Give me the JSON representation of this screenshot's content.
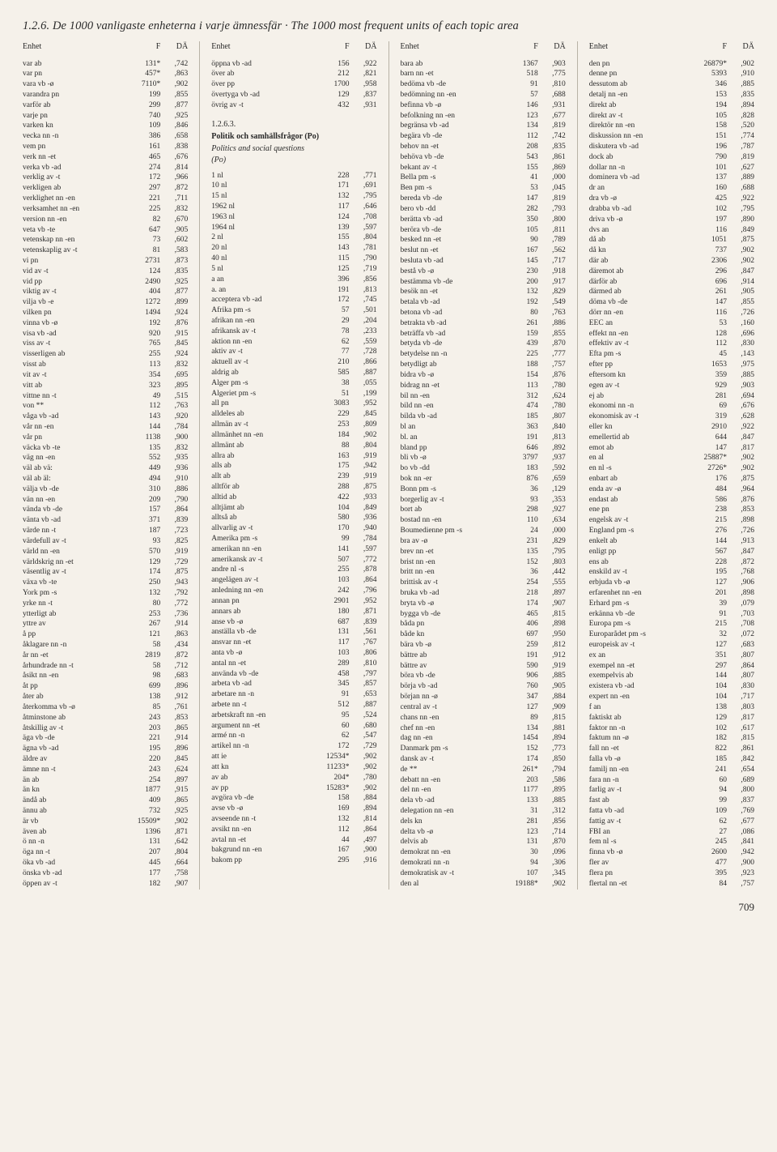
{
  "title": "1.2.6. De 1000 vanligaste enheterna i varje ämnessfär · The 1000 most frequent units of each topic area",
  "headers": {
    "h1": "Enhet",
    "h2": "F",
    "h3": "DÄ"
  },
  "section": {
    "num": "1.2.6.3.",
    "sv": "Politik och samhällsfrågor (Po)",
    "en": "Politics and social questions",
    "code": "(Po)"
  },
  "page_num": "709",
  "col1": [
    [
      "var ab",
      "131*",
      ",742"
    ],
    [
      "var pn",
      "457*",
      ",863"
    ],
    [
      "vara vb -ø",
      "7110*",
      ",902"
    ],
    [
      "varandra pn",
      "199",
      ",855"
    ],
    [
      "varför ab",
      "299",
      ",877"
    ],
    [
      "varje pn",
      "740",
      ",925"
    ],
    [
      "varken kn",
      "109",
      ",846"
    ],
    [
      "vecka nn -n",
      "386",
      ",658"
    ],
    [
      "vem pn",
      "161",
      ",838"
    ],
    [
      "verk nn -et",
      "465",
      ",676"
    ],
    [
      "verka vb -ad",
      "274",
      ",814"
    ],
    [
      "verklig av -t",
      "172",
      ",966"
    ],
    [
      "verkligen ab",
      "297",
      ",872"
    ],
    [
      "verklighet nn -en",
      "221",
      ",711"
    ],
    [
      "verksamhet nn -en",
      "225",
      ",832"
    ],
    [
      "version nn -en",
      "82",
      ",670"
    ],
    [
      "veta vb -te",
      "647",
      ",905"
    ],
    [
      "vetenskap nn -en",
      "73",
      ",602"
    ],
    [
      "vetenskaplig av -t",
      "81",
      ",583"
    ],
    [
      "vi pn",
      "2731",
      ",873"
    ],
    [
      "vid av -t",
      "124",
      ",835"
    ],
    [
      "vid pp",
      "2490",
      ",925"
    ],
    [
      "viktig av -t",
      "404",
      ",877"
    ],
    [
      "vilja vb -e",
      "1272",
      ",899"
    ],
    [
      "vilken pn",
      "1494",
      ",924"
    ],
    [
      "vinna vb -ø",
      "192",
      ",876"
    ],
    [
      "visa vb -ad",
      "920",
      ",915"
    ],
    [
      "viss av -t",
      "765",
      ",845"
    ],
    [
      "visserligen ab",
      "255",
      ",924"
    ],
    [
      "visst ab",
      "113",
      ",832"
    ],
    [
      "vit av -t",
      "354",
      ",695"
    ],
    [
      "vitt ab",
      "323",
      ",895"
    ],
    [
      "vittne nn -t",
      "49",
      ",515"
    ],
    [
      "von **",
      "112",
      ",763"
    ],
    [
      "våga vb -ad",
      "143",
      ",920"
    ],
    [
      "vår nn -en",
      "144",
      ",784"
    ],
    [
      "vår pn",
      "1138",
      ",900"
    ],
    [
      "väcka vb -te",
      "135",
      ",832"
    ],
    [
      "väg nn -en",
      "552",
      ",935"
    ],
    [
      "väl ab vä:",
      "449",
      ",936"
    ],
    [
      "väl ab äl:",
      "494",
      ",910"
    ],
    [
      "välja vb -de",
      "310",
      ",886"
    ],
    [
      "vän nn -en",
      "209",
      ",790"
    ],
    [
      "vända vb -de",
      "157",
      ",864"
    ],
    [
      "vänta vb -ad",
      "371",
      ",839"
    ],
    [
      "värde nn -t",
      "187",
      ",723"
    ],
    [
      "värdefull av -t",
      "93",
      ",825"
    ],
    [
      "värld nn -en",
      "570",
      ",919"
    ],
    [
      "världskrig nn -et",
      "129",
      ",729"
    ],
    [
      "väsentlig av -t",
      "174",
      ",875"
    ],
    [
      "växa vb -te",
      "250",
      ",943"
    ],
    [
      "York pm -s",
      "132",
      ",792"
    ],
    [
      "yrke nn -t",
      "80",
      ",772"
    ],
    [
      "ytterligt ab",
      "253",
      ",736"
    ],
    [
      "yttre av",
      "267",
      ",914"
    ],
    [
      "å pp",
      "121",
      ",863"
    ],
    [
      "åklagare nn -n",
      "58",
      ",434"
    ],
    [
      "år nn -et",
      "2819",
      ",872"
    ],
    [
      "århundrade nn -t",
      "58",
      ",712"
    ],
    [
      "åsikt nn -en",
      "98",
      ",683"
    ],
    [
      "åt pp",
      "699",
      ",896"
    ],
    [
      "åter ab",
      "138",
      ",912"
    ],
    [
      "återkomma vb -ø",
      "85",
      ",761"
    ],
    [
      "åtminstone ab",
      "243",
      ",853"
    ],
    [
      "åtskillig av -t",
      "203",
      ",865"
    ],
    [
      "äga vb -de",
      "221",
      ",914"
    ],
    [
      "ägna vb -ad",
      "195",
      ",896"
    ],
    [
      "äldre av",
      "220",
      ",845"
    ],
    [
      "ämne nn -t",
      "243",
      ",624"
    ],
    [
      "än ab",
      "254",
      ",897"
    ],
    [
      "än kn",
      "1877",
      ",915"
    ],
    [
      "ändå ab",
      "409",
      ",865"
    ],
    [
      "ännu ab",
      "732",
      ",925"
    ],
    [
      "är vb",
      "15509*",
      ",902"
    ],
    [
      "även ab",
      "1396",
      ",871"
    ],
    [
      "ö nn -n",
      "131",
      ",642"
    ],
    [
      "öga nn -t",
      "207",
      ",804"
    ],
    [
      "öka vb -ad",
      "445",
      ",664"
    ],
    [
      "önska vb -ad",
      "177",
      ",758"
    ],
    [
      "öppen av -t",
      "182",
      ",907"
    ]
  ],
  "col2a": [
    [
      "öppna vb -ad",
      "156",
      ",922"
    ],
    [
      "över ab",
      "212",
      ",821"
    ],
    [
      "över pp",
      "1700",
      ",958"
    ],
    [
      "övertyga vb -ad",
      "129",
      ",837"
    ],
    [
      "övrig av -t",
      "432",
      ",931"
    ]
  ],
  "col2b": [
    [
      "1 nl",
      "228",
      ",771"
    ],
    [
      "10 nl",
      "171",
      ",691"
    ],
    [
      "15 nl",
      "132",
      ",795"
    ],
    [
      "1962 nl",
      "117",
      ",646"
    ],
    [
      "1963 nl",
      "124",
      ",708"
    ],
    [
      "1964 nl",
      "139",
      ",597"
    ],
    [
      "2 nl",
      "155",
      ",804"
    ],
    [
      "20 nl",
      "143",
      ",781"
    ],
    [
      "40 nl",
      "115",
      ",790"
    ],
    [
      "5 nl",
      "125",
      ",719"
    ],
    [
      "a an",
      "396",
      ",856"
    ],
    [
      "a. an",
      "191",
      ",813"
    ],
    [
      "acceptera vb -ad",
      "172",
      ",745"
    ],
    [
      "Afrika pm -s",
      "57",
      ",501"
    ],
    [
      "afrikan nn -en",
      "29",
      ",204"
    ],
    [
      "afrikansk av -t",
      "78",
      ",233"
    ],
    [
      "aktion nn -en",
      "62",
      ",559"
    ],
    [
      "aktiv av -t",
      "77",
      ",728"
    ],
    [
      "aktuell av -t",
      "210",
      ",866"
    ],
    [
      "aldrig ab",
      "585",
      ",887"
    ],
    [
      "Alger pm -s",
      "38",
      ",055"
    ],
    [
      "Algeriet pm -s",
      "51",
      ",199"
    ],
    [
      "all pn",
      "3083",
      ",952"
    ],
    [
      "alldeles ab",
      "229",
      ",845"
    ],
    [
      "allmän av -t",
      "253",
      ",809"
    ],
    [
      "allmänhet nn -en",
      "184",
      ",902"
    ],
    [
      "allmänt ab",
      "88",
      ",804"
    ],
    [
      "allra ab",
      "163",
      ",919"
    ],
    [
      "alls ab",
      "175",
      ",942"
    ],
    [
      "allt ab",
      "239",
      ",919"
    ],
    [
      "alltför ab",
      "288",
      ",875"
    ],
    [
      "alltid ab",
      "422",
      ",933"
    ],
    [
      "alltjämt ab",
      "104",
      ",849"
    ],
    [
      "alltså ab",
      "580",
      ",936"
    ],
    [
      "allvarlig av -t",
      "170",
      ",940"
    ],
    [
      "Amerika pm -s",
      "99",
      ",784"
    ],
    [
      "amerikan nn -en",
      "141",
      ",597"
    ],
    [
      "amerikansk av -t",
      "507",
      ",772"
    ],
    [
      "andre nl -s",
      "255",
      ",878"
    ],
    [
      "angelägen av -t",
      "103",
      ",864"
    ],
    [
      "anledning nn -en",
      "242",
      ",796"
    ],
    [
      "annan pn",
      "2901",
      ",952"
    ],
    [
      "annars ab",
      "180",
      ",871"
    ],
    [
      "anse vb -ø",
      "687",
      ",839"
    ],
    [
      "anställa vb -de",
      "131",
      ",561"
    ],
    [
      "ansvar nn -et",
      "117",
      ",767"
    ],
    [
      "anta vb -ø",
      "103",
      ",806"
    ],
    [
      "antal nn -et",
      "289",
      ",810"
    ],
    [
      "använda vb -de",
      "458",
      ",797"
    ],
    [
      "arbeta vb -ad",
      "345",
      ",857"
    ],
    [
      "arbetare nn -n",
      "91",
      ",653"
    ],
    [
      "arbete nn -t",
      "512",
      ",887"
    ],
    [
      "arbetskraft nn -en",
      "95",
      ",524"
    ],
    [
      "argument nn -et",
      "60",
      ",680"
    ],
    [
      "armé nn -n",
      "62",
      ",547"
    ],
    [
      "artikel nn -n",
      "172",
      ",729"
    ],
    [
      "att ie",
      "12534*",
      ",902"
    ],
    [
      "att kn",
      "11233*",
      ",902"
    ],
    [
      "av ab",
      "204*",
      ",780"
    ],
    [
      "av pp",
      "15283*",
      ",902"
    ],
    [
      "avgöra vb -de",
      "158",
      ",884"
    ],
    [
      "avse vb -ø",
      "169",
      ",894"
    ],
    [
      "avseende nn -t",
      "132",
      ",814"
    ],
    [
      "avsikt nn -en",
      "112",
      ",864"
    ],
    [
      "avtal nn -et",
      "44",
      ",497"
    ],
    [
      "bakgrund nn -en",
      "167",
      ",900"
    ],
    [
      "bakom pp",
      "295",
      ",916"
    ]
  ],
  "col3": [
    [
      "bara ab",
      "1367",
      ",903"
    ],
    [
      "barn nn -et",
      "518",
      ",775"
    ],
    [
      "bedöma vb -de",
      "91",
      ",810"
    ],
    [
      "bedömning nn -en",
      "57",
      ",688"
    ],
    [
      "befinna vb -ø",
      "146",
      ",931"
    ],
    [
      "befolkning nn -en",
      "123",
      ",677"
    ],
    [
      "begränsa vb -ad",
      "134",
      ",819"
    ],
    [
      "begära vb -de",
      "112",
      ",742"
    ],
    [
      "behov nn -et",
      "208",
      ",835"
    ],
    [
      "behöva vb -de",
      "543",
      ",861"
    ],
    [
      "bekant av -t",
      "155",
      ",869"
    ],
    [
      "Bella pm -s",
      "41",
      ",000"
    ],
    [
      "Ben pm -s",
      "53",
      ",045"
    ],
    [
      "bereda vb -de",
      "147",
      ",819"
    ],
    [
      "bero vb -dd",
      "282",
      ",793"
    ],
    [
      "berätta vb -ad",
      "350",
      ",800"
    ],
    [
      "beröra vb -de",
      "105",
      ",811"
    ],
    [
      "besked nn -et",
      "90",
      ",789"
    ],
    [
      "beslut nn -et",
      "167",
      ",562"
    ],
    [
      "besluta vb -ad",
      "145",
      ",717"
    ],
    [
      "bestå vb -ø",
      "230",
      ",918"
    ],
    [
      "bestämma vb -de",
      "200",
      ",917"
    ],
    [
      "besök nn -et",
      "132",
      ",829"
    ],
    [
      "betala vb -ad",
      "192",
      ",549"
    ],
    [
      "betona vb -ad",
      "80",
      ",763"
    ],
    [
      "betrakta vb -ad",
      "261",
      ",886"
    ],
    [
      "beträffa vb -ad",
      "159",
      ",855"
    ],
    [
      "betyda vb -de",
      "439",
      ",870"
    ],
    [
      "betydelse nn -n",
      "225",
      ",777"
    ],
    [
      "betydligt ab",
      "188",
      ",757"
    ],
    [
      "bidra vb -ø",
      "154",
      ",876"
    ],
    [
      "bidrag nn -et",
      "113",
      ",780"
    ],
    [
      "bil nn -en",
      "312",
      ",624"
    ],
    [
      "bild nn -en",
      "474",
      ",780"
    ],
    [
      "bilda vb -ad",
      "185",
      ",807"
    ],
    [
      "bl an",
      "363",
      ",840"
    ],
    [
      "bl. an",
      "191",
      ",813"
    ],
    [
      "bland pp",
      "646",
      ",892"
    ],
    [
      "bli vb -ø",
      "3797",
      ",937"
    ],
    [
      "bo vb -dd",
      "183",
      ",592"
    ],
    [
      "bok nn -er",
      "876",
      ",659"
    ],
    [
      "Bonn pm -s",
      "36",
      ",129"
    ],
    [
      "borgerlig av -t",
      "93",
      ",353"
    ],
    [
      "bort ab",
      "298",
      ",927"
    ],
    [
      "bostad nn -en",
      "110",
      ",634"
    ],
    [
      "Boumedienne pm -s",
      "24",
      ",000"
    ],
    [
      "bra av -ø",
      "231",
      ",829"
    ],
    [
      "brev nn -et",
      "135",
      ",795"
    ],
    [
      "brist nn -en",
      "152",
      ",803"
    ],
    [
      "britt nn -en",
      "36",
      ",442"
    ],
    [
      "brittisk av -t",
      "254",
      ",555"
    ],
    [
      "bruka vb -ad",
      "218",
      ",897"
    ],
    [
      "bryta vb -ø",
      "174",
      ",907"
    ],
    [
      "bygga vb -de",
      "465",
      ",815"
    ],
    [
      "båda pn",
      "406",
      ",898"
    ],
    [
      "både kn",
      "697",
      ",950"
    ],
    [
      "bära vb -ø",
      "259",
      ",812"
    ],
    [
      "bättre ab",
      "191",
      ",912"
    ],
    [
      "bättre av",
      "590",
      ",919"
    ],
    [
      "böra vb -de",
      "906",
      ",885"
    ],
    [
      "börja vb -ad",
      "760",
      ",905"
    ],
    [
      "början nn -ø",
      "347",
      ",884"
    ],
    [
      "central av -t",
      "127",
      ",909"
    ],
    [
      "chans nn -en",
      "89",
      ",815"
    ],
    [
      "chef nn -en",
      "134",
      ",881"
    ],
    [
      "dag nn -en",
      "1454",
      ",894"
    ],
    [
      "Danmark pm -s",
      "152",
      ",773"
    ],
    [
      "dansk av -t",
      "174",
      ",850"
    ],
    [
      "de **",
      "261*",
      ",794"
    ],
    [
      "debatt nn -en",
      "203",
      ",586"
    ],
    [
      "del nn -en",
      "1177",
      ",895"
    ],
    [
      "dela vb -ad",
      "133",
      ",885"
    ],
    [
      "delegation nn -en",
      "31",
      ",312"
    ],
    [
      "dels kn",
      "281",
      ",856"
    ],
    [
      "delta vb -ø",
      "123",
      ",714"
    ],
    [
      "delvis ab",
      "131",
      ",870"
    ],
    [
      "demokrat nn -en",
      "30",
      ",096"
    ],
    [
      "demokrati nn -n",
      "94",
      ",306"
    ],
    [
      "demokratisk av -t",
      "107",
      ",345"
    ],
    [
      "den al",
      "19188*",
      ",902"
    ]
  ],
  "col4": [
    [
      "den pn",
      "26879*",
      ",902"
    ],
    [
      "denne pn",
      "5393",
      ",910"
    ],
    [
      "dessutom ab",
      "346",
      ",885"
    ],
    [
      "detalj nn -en",
      "153",
      ",835"
    ],
    [
      "direkt ab",
      "194",
      ",894"
    ],
    [
      "direkt av -t",
      "105",
      ",828"
    ],
    [
      "direktör nn -en",
      "158",
      ",520"
    ],
    [
      "diskussion nn -en",
      "151",
      ",774"
    ],
    [
      "diskutera vb -ad",
      "196",
      ",787"
    ],
    [
      "dock ab",
      "790",
      ",819"
    ],
    [
      "dollar nn -n",
      "101",
      ",627"
    ],
    [
      "dominera vb -ad",
      "137",
      ",889"
    ],
    [
      "dr an",
      "160",
      ",688"
    ],
    [
      "dra vb -ø",
      "425",
      ",922"
    ],
    [
      "drabba vb -ad",
      "102",
      ",795"
    ],
    [
      "driva vb -ø",
      "197",
      ",890"
    ],
    [
      "dvs an",
      "116",
      ",849"
    ],
    [
      "då ab",
      "1051",
      ",875"
    ],
    [
      "då kn",
      "737",
      ",902"
    ],
    [
      "där ab",
      "2306",
      ",902"
    ],
    [
      "däremot ab",
      "296",
      ",847"
    ],
    [
      "därför ab",
      "696",
      ",914"
    ],
    [
      "därmed ab",
      "261",
      ",905"
    ],
    [
      "döma vb -de",
      "147",
      ",855"
    ],
    [
      "dörr nn -en",
      "116",
      ",726"
    ],
    [
      "EEC an",
      "53",
      ",160"
    ],
    [
      "effekt nn -en",
      "128",
      ",696"
    ],
    [
      "effektiv av -t",
      "112",
      ",830"
    ],
    [
      "Efta pm -s",
      "45",
      ",143"
    ],
    [
      "efter pp",
      "1653",
      ",975"
    ],
    [
      "eftersom kn",
      "359",
      ",885"
    ],
    [
      "egen av -t",
      "929",
      ",903"
    ],
    [
      "ej ab",
      "281",
      ",694"
    ],
    [
      "ekonomi nn -n",
      "69",
      ",676"
    ],
    [
      "ekonomisk av -t",
      "319",
      ",628"
    ],
    [
      "eller kn",
      "2910",
      ",922"
    ],
    [
      "emellertid ab",
      "644",
      ",847"
    ],
    [
      "emot ab",
      "147",
      ",817"
    ],
    [
      "en al",
      "25887*",
      ",902"
    ],
    [
      "en nl -s",
      "2726*",
      ",902"
    ],
    [
      "enbart ab",
      "176",
      ",875"
    ],
    [
      "enda av -ø",
      "484",
      ",964"
    ],
    [
      "endast ab",
      "586",
      ",876"
    ],
    [
      "ene pn",
      "238",
      ",853"
    ],
    [
      "engelsk av -t",
      "215",
      ",898"
    ],
    [
      "England pm -s",
      "276",
      ",726"
    ],
    [
      "enkelt ab",
      "144",
      ",913"
    ],
    [
      "enligt pp",
      "567",
      ",847"
    ],
    [
      "ens ab",
      "228",
      ",872"
    ],
    [
      "enskild av -t",
      "195",
      ",768"
    ],
    [
      "erbjuda vb -ø",
      "127",
      ",906"
    ],
    [
      "erfarenhet nn -en",
      "201",
      ",898"
    ],
    [
      "Erhard pm -s",
      "39",
      ",079"
    ],
    [
      "erkänna vb -de",
      "91",
      ",703"
    ],
    [
      "Europa pm -s",
      "215",
      ",708"
    ],
    [
      "Europarådet pm -s",
      "32",
      ",072"
    ],
    [
      "europeisk av -t",
      "127",
      ",683"
    ],
    [
      "ex an",
      "351",
      ",807"
    ],
    [
      "exempel nn -et",
      "297",
      ",864"
    ],
    [
      "exempelvis ab",
      "144",
      ",807"
    ],
    [
      "existera vb -ad",
      "104",
      ",830"
    ],
    [
      "expert nn -en",
      "104",
      ",717"
    ],
    [
      "f an",
      "138",
      ",803"
    ],
    [
      "faktiskt ab",
      "129",
      ",817"
    ],
    [
      "faktor nn -n",
      "102",
      ",617"
    ],
    [
      "faktum nn -ø",
      "182",
      ",815"
    ],
    [
      "fall nn -et",
      "822",
      ",861"
    ],
    [
      "falla vb -ø",
      "185",
      ",842"
    ],
    [
      "familj nn -en",
      "241",
      ",654"
    ],
    [
      "fara nn -n",
      "60",
      ",689"
    ],
    [
      "farlig av -t",
      "94",
      ",800"
    ],
    [
      "fast ab",
      "99",
      ",837"
    ],
    [
      "fatta vb -ad",
      "109",
      ",769"
    ],
    [
      "fattig av -t",
      "62",
      ",677"
    ],
    [
      "FBI an",
      "27",
      ",086"
    ],
    [
      "fem nl -s",
      "245",
      ",841"
    ],
    [
      "finna vb -ø",
      "2600",
      ",942"
    ],
    [
      "fler av",
      "477",
      ",900"
    ],
    [
      "flera pn",
      "395",
      ",923"
    ],
    [
      "flertal nn -et",
      "84",
      ",757"
    ]
  ]
}
